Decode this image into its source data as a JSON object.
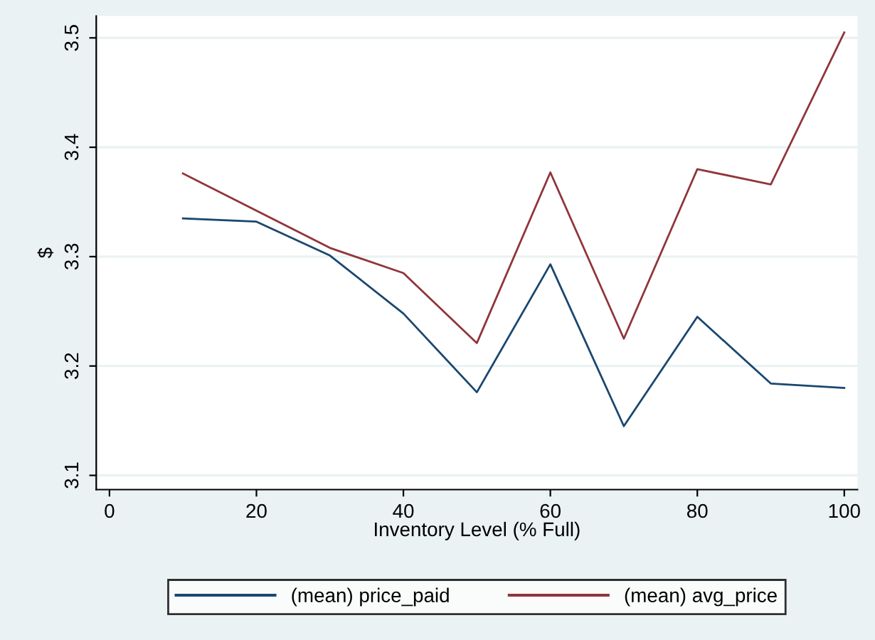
{
  "chart_data": {
    "type": "line",
    "xlabel": "Inventory Level (% Full)",
    "ylabel": "$",
    "x": [
      10,
      20,
      30,
      40,
      50,
      60,
      70,
      80,
      90,
      100
    ],
    "series": [
      {
        "name": "(mean) price_paid",
        "color": "#1a476f",
        "values": [
          3.335,
          3.332,
          3.301,
          3.248,
          3.176,
          3.293,
          3.145,
          3.245,
          3.184,
          3.18
        ]
      },
      {
        "name": "(mean) avg_price",
        "color": "#90353b",
        "values": [
          3.376,
          3.342,
          3.308,
          3.285,
          3.221,
          3.377,
          3.225,
          3.38,
          3.366,
          3.505
        ]
      }
    ],
    "xlim": [
      -1.8,
      101.8
    ],
    "ylim": [
      3.087,
      3.52
    ],
    "xticks": [
      0,
      20,
      40,
      60,
      80,
      100
    ],
    "yticks": [
      3.1,
      3.2,
      3.3,
      3.4,
      3.5
    ],
    "grid": "y",
    "legend": "bottom",
    "marker": "none",
    "line_style": "solid"
  }
}
